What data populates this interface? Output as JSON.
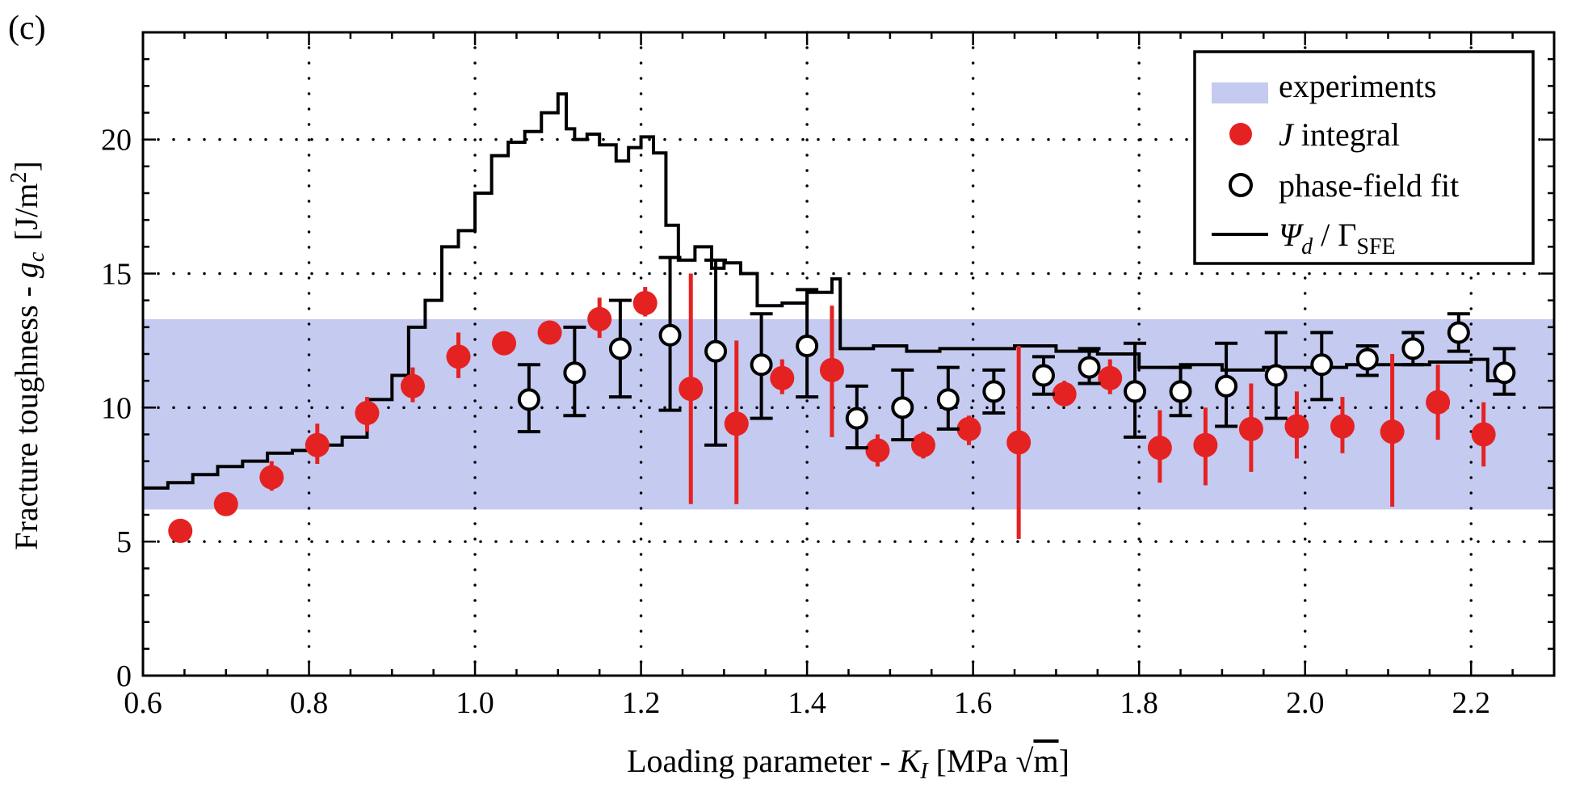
{
  "panel_label": "(c)",
  "colors": {
    "band": "#c5caf0",
    "j_integral": "#e52222",
    "phase_field": "#000000",
    "line": "#000000"
  },
  "legend": {
    "experiments": "experiments",
    "j_integral_italic": "J",
    "j_integral_rest": " integral",
    "phase_field": "phase-field fit",
    "psi_symbol": "Ψ",
    "psi_sub": "d",
    "psi_sep": " / Γ",
    "psi_sfe": "SFE"
  },
  "axes": {
    "ylabel_main": "Fracture toughness - ",
    "ylabel_symbol": "g",
    "ylabel_sub": "c",
    "ylabel_units": "[J/m",
    "ylabel_exp": "2",
    "ylabel_close": "]",
    "xlabel_main": "Loading parameter - ",
    "xlabel_symbol": "K",
    "xlabel_sub": "I",
    "xlabel_units_open": " [MPa ",
    "xlabel_sqrt_arg": "m",
    "xlabel_units_close": "]"
  },
  "chart_data": {
    "type": "scatter",
    "xlim": [
      0.6,
      2.3
    ],
    "ylim": [
      0,
      24
    ],
    "grid": "dotted",
    "legend_position": "top-right",
    "x_ticks": [
      0.6,
      0.8,
      1.0,
      1.2,
      1.4,
      1.6,
      1.8,
      2.0,
      2.2
    ],
    "x_tick_labels": [
      "0.6",
      "0.8",
      "1.0",
      "1.2",
      "1.4",
      "1.6",
      "1.8",
      "2.0",
      "2.2"
    ],
    "y_ticks": [
      0,
      5,
      10,
      15,
      20
    ],
    "y_tick_labels": [
      "0",
      "5",
      "10",
      "15",
      "20"
    ],
    "experiments_band": {
      "y_min": 6.2,
      "y_max": 13.3
    },
    "j_integral": {
      "x": [
        0.645,
        0.7,
        0.755,
        0.81,
        0.87,
        0.925,
        0.98,
        1.035,
        1.09,
        1.15,
        1.205,
        1.26,
        1.315,
        1.37,
        1.43,
        1.485,
        1.54,
        1.595,
        1.655,
        1.71,
        1.765,
        1.825,
        1.88,
        1.935,
        1.99,
        2.045,
        2.105,
        2.16,
        2.215
      ],
      "y": [
        5.4,
        6.4,
        7.4,
        8.6,
        9.8,
        10.8,
        11.9,
        12.4,
        12.8,
        13.3,
        13.9,
        10.7,
        9.4,
        11.1,
        11.4,
        8.4,
        8.6,
        9.2,
        8.7,
        10.5,
        11.1,
        8.5,
        8.6,
        9.2,
        9.3,
        9.3,
        9.1,
        10.2,
        9.0
      ],
      "err_low": [
        5.4,
        6.0,
        6.9,
        7.9,
        9.1,
        10.2,
        11.1,
        12.4,
        12.8,
        12.6,
        13.4,
        6.4,
        6.4,
        10.5,
        8.9,
        7.8,
        8.1,
        8.6,
        5.1,
        10.1,
        10.5,
        7.2,
        7.1,
        7.6,
        8.1,
        8.3,
        6.3,
        8.8,
        7.8
      ],
      "err_high": [
        5.4,
        6.6,
        8.0,
        9.4,
        10.4,
        11.5,
        12.8,
        12.4,
        12.8,
        14.1,
        14.5,
        15.0,
        12.5,
        11.8,
        13.8,
        9.0,
        9.1,
        9.7,
        12.3,
        11.0,
        11.8,
        9.9,
        10.0,
        10.9,
        10.6,
        10.4,
        12.0,
        11.6,
        10.2
      ]
    },
    "phase_field_fit": {
      "x": [
        1.065,
        1.12,
        1.175,
        1.235,
        1.29,
        1.345,
        1.4,
        1.46,
        1.515,
        1.57,
        1.625,
        1.685,
        1.74,
        1.795,
        1.85,
        1.905,
        1.965,
        2.02,
        2.075,
        2.13,
        2.185,
        2.24
      ],
      "y": [
        10.3,
        11.3,
        12.2,
        12.7,
        12.1,
        11.6,
        12.3,
        9.6,
        10.0,
        10.3,
        10.6,
        11.2,
        11.5,
        10.6,
        10.6,
        10.8,
        11.2,
        11.6,
        11.8,
        12.2,
        12.8,
        11.3
      ],
      "err_low": [
        9.1,
        9.7,
        10.4,
        9.9,
        8.6,
        9.6,
        10.4,
        8.5,
        8.8,
        9.2,
        9.8,
        10.5,
        10.9,
        8.9,
        9.7,
        9.3,
        9.6,
        10.3,
        11.2,
        11.6,
        12.1,
        10.5
      ],
      "err_high": [
        11.6,
        13.0,
        14.0,
        15.6,
        15.5,
        13.5,
        14.4,
        10.8,
        11.4,
        11.5,
        11.4,
        11.9,
        12.2,
        12.4,
        11.5,
        12.4,
        12.8,
        12.8,
        12.3,
        12.8,
        13.5,
        12.2
      ]
    },
    "psi_over_gamma": {
      "x": [
        0.6,
        0.63,
        0.66,
        0.69,
        0.72,
        0.75,
        0.78,
        0.81,
        0.84,
        0.87,
        0.9,
        0.92,
        0.94,
        0.96,
        0.98,
        1.0,
        1.02,
        1.04,
        1.06,
        1.08,
        1.1,
        1.11,
        1.12,
        1.135,
        1.15,
        1.17,
        1.185,
        1.2,
        1.215,
        1.23,
        1.245,
        1.265,
        1.285,
        1.3,
        1.32,
        1.34,
        1.37,
        1.4,
        1.43,
        1.44,
        1.48,
        1.52,
        1.56,
        1.6,
        1.65,
        1.7,
        1.75,
        1.8,
        1.85,
        1.9,
        1.95,
        2.0,
        2.05,
        2.1,
        2.15,
        2.2,
        2.22,
        2.24
      ],
      "y": [
        7.0,
        7.2,
        7.5,
        7.8,
        8.0,
        8.3,
        8.4,
        8.6,
        8.9,
        10.3,
        11.2,
        13.0,
        14.0,
        16.0,
        16.6,
        18.0,
        19.4,
        19.9,
        20.3,
        21.0,
        21.7,
        20.4,
        20.0,
        20.2,
        19.8,
        19.2,
        19.7,
        20.1,
        19.5,
        16.8,
        15.5,
        16.0,
        15.2,
        15.4,
        15.0,
        13.8,
        13.9,
        14.3,
        14.8,
        12.2,
        12.3,
        12.1,
        12.2,
        12.2,
        12.3,
        12.1,
        12.0,
        11.5,
        11.6,
        11.4,
        11.5,
        11.5,
        11.6,
        11.6,
        11.7,
        11.8,
        11.0,
        11.1
      ]
    }
  }
}
